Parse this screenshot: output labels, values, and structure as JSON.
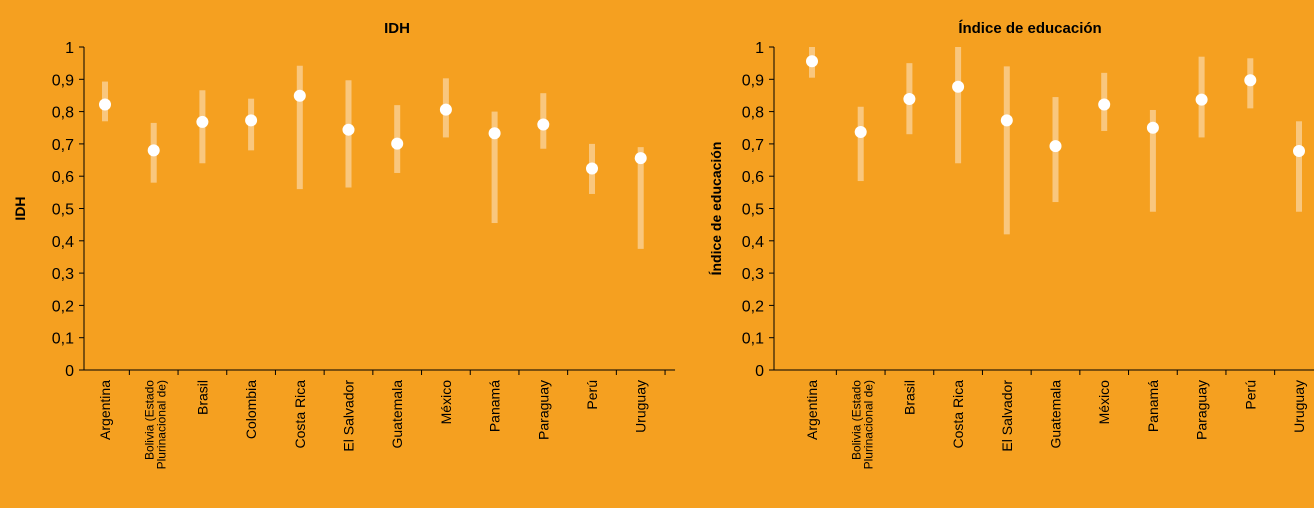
{
  "chart_data": [
    {
      "type": "scatter",
      "title": "IDH",
      "ylabel": "IDH",
      "xlabel": "",
      "ylim": [
        0,
        1
      ],
      "y_ticks": [
        "0",
        "0,1",
        "0,2",
        "0,3",
        "0,4",
        "0,5",
        "0,6",
        "0,7",
        "0,8",
        "0,9",
        "1"
      ],
      "categories": [
        [
          "Argentina"
        ],
        [
          "Bolivia (Estado",
          "Plurinacional de)"
        ],
        [
          "Brasil"
        ],
        [
          "Colombia"
        ],
        [
          "Costa Rica"
        ],
        [
          "El Salvador"
        ],
        [
          "Guatemala"
        ],
        [
          "México"
        ],
        [
          "Panamá"
        ],
        [
          "Paraguay"
        ],
        [
          "Perú"
        ],
        [
          "Uruguay"
        ]
      ],
      "values": [
        0.822,
        0.68,
        0.768,
        0.773,
        0.849,
        0.744,
        0.701,
        0.806,
        0.733,
        0.76,
        0.624,
        0.656
      ],
      "range_low": [
        0.77,
        0.58,
        0.64,
        0.68,
        0.56,
        0.565,
        0.61,
        0.72,
        0.455,
        0.685,
        0.545,
        0.375
      ],
      "range_high": [
        0.893,
        0.765,
        0.866,
        0.84,
        0.942,
        0.897,
        0.82,
        0.903,
        0.8,
        0.857,
        0.7,
        0.69
      ],
      "colors": {
        "point": "#FFFFFF",
        "range": "#F9C77E",
        "axis": "#000000"
      }
    },
    {
      "type": "scatter",
      "title": "Índice de educación",
      "ylabel": "Índice de educación",
      "xlabel": "",
      "ylim": [
        0,
        1
      ],
      "y_ticks": [
        "0",
        "0,1",
        "0,2",
        "0,3",
        "0,4",
        "0,5",
        "0,6",
        "0,7",
        "0,8",
        "0,9",
        "1"
      ],
      "categories": [
        [
          "Argentina"
        ],
        [
          "Bolivia (Estado",
          "Plurinacional de)"
        ],
        [
          "Brasil"
        ],
        [
          "Costa Rica"
        ],
        [
          "El Salvador"
        ],
        [
          "Guatemala"
        ],
        [
          "México"
        ],
        [
          "Panamá"
        ],
        [
          "Paraguay"
        ],
        [
          "Perú"
        ],
        [
          "Uruguay"
        ]
      ],
      "values": [
        0.956,
        0.737,
        0.839,
        0.877,
        0.773,
        0.693,
        0.822,
        0.75,
        0.837,
        0.897,
        0.678
      ],
      "range_low": [
        0.905,
        0.585,
        0.73,
        0.64,
        0.42,
        0.52,
        0.74,
        0.49,
        0.72,
        0.81,
        0.49
      ],
      "range_high": [
        1.0,
        0.815,
        0.95,
        1.0,
        0.94,
        0.845,
        0.92,
        0.805,
        0.97,
        0.965,
        0.77
      ],
      "colors": {
        "point": "#FFFFFF",
        "range": "#F9C77E",
        "axis": "#000000"
      }
    }
  ]
}
